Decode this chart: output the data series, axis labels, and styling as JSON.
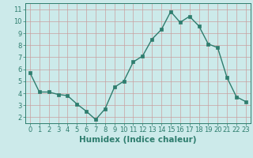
{
  "x": [
    0,
    1,
    2,
    3,
    4,
    5,
    6,
    7,
    8,
    9,
    10,
    11,
    12,
    13,
    14,
    15,
    16,
    17,
    18,
    19,
    20,
    21,
    22,
    23
  ],
  "y": [
    5.7,
    4.1,
    4.1,
    3.9,
    3.8,
    3.1,
    2.5,
    1.8,
    2.7,
    4.5,
    5.0,
    6.6,
    7.1,
    8.5,
    9.3,
    10.8,
    9.9,
    10.4,
    9.6,
    8.1,
    7.8,
    5.3,
    3.7,
    3.3
  ],
  "line_color": "#2e7d6e",
  "marker_color": "#2e7d6e",
  "bg_color": "#cceaea",
  "grid_color": "#b8d8d8",
  "xlabel": "Humidex (Indice chaleur)",
  "xlim": [
    -0.5,
    23.5
  ],
  "ylim": [
    1.5,
    11.5
  ],
  "yticks": [
    2,
    3,
    4,
    5,
    6,
    7,
    8,
    9,
    10,
    11
  ],
  "xticks": [
    0,
    1,
    2,
    3,
    4,
    5,
    6,
    7,
    8,
    9,
    10,
    11,
    12,
    13,
    14,
    15,
    16,
    17,
    18,
    19,
    20,
    21,
    22,
    23
  ],
  "tick_color": "#2e7d6e",
  "font_color": "#2e7d6e",
  "font_size": 6.0,
  "xlabel_fontsize": 7.5,
  "linewidth": 1.0,
  "markersize": 2.5
}
